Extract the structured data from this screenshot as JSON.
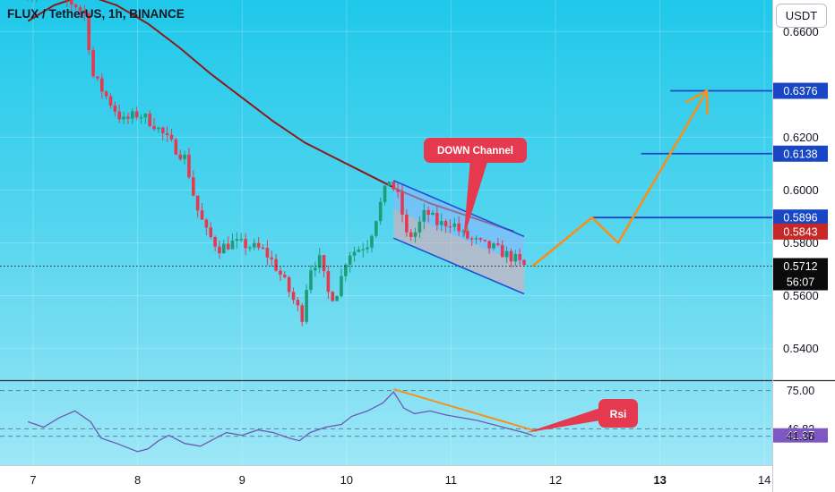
{
  "header": {
    "symbol_line": "FLUX / TetherUS, 1h, BINANCE",
    "currency_button": "USDT"
  },
  "chart_data": [
    {
      "type": "candlestick",
      "title": "FLUX / TetherUS, 1h, BINANCE",
      "ylim": [
        0.528,
        0.672
      ],
      "y_ticks": [
        "0.6600",
        "0.6200",
        "0.6000",
        "0.5800",
        "0.5600",
        "0.5400"
      ],
      "x_ticks": [
        "7",
        "8",
        "9",
        "10",
        "11",
        "12",
        "13",
        "14"
      ],
      "price_points": [
        [
          6.95,
          0.675
        ],
        [
          7.25,
          0.674
        ],
        [
          7.45,
          0.67
        ],
        [
          7.55,
          0.666
        ],
        [
          7.6,
          0.644
        ],
        [
          7.75,
          0.635
        ],
        [
          7.9,
          0.626
        ],
        [
          8.05,
          0.629
        ],
        [
          8.2,
          0.625
        ],
        [
          8.35,
          0.618
        ],
        [
          8.5,
          0.612
        ],
        [
          8.6,
          0.594
        ],
        [
          8.7,
          0.584
        ],
        [
          8.82,
          0.578
        ],
        [
          8.95,
          0.58
        ],
        [
          9.1,
          0.579
        ],
        [
          9.25,
          0.577
        ],
        [
          9.35,
          0.572
        ],
        [
          9.45,
          0.565
        ],
        [
          9.55,
          0.557
        ],
        [
          9.62,
          0.552
        ],
        [
          9.68,
          0.57
        ],
        [
          9.78,
          0.574
        ],
        [
          9.88,
          0.559
        ],
        [
          9.96,
          0.562
        ],
        [
          10.05,
          0.576
        ],
        [
          10.12,
          0.577
        ],
        [
          10.25,
          0.58
        ],
        [
          10.35,
          0.593
        ],
        [
          10.45,
          0.604
        ],
        [
          10.55,
          0.596
        ],
        [
          10.62,
          0.582
        ],
        [
          10.7,
          0.584
        ],
        [
          10.8,
          0.592
        ],
        [
          10.92,
          0.587
        ],
        [
          11.05,
          0.588
        ],
        [
          11.15,
          0.583
        ],
        [
          11.25,
          0.581
        ],
        [
          11.35,
          0.579
        ],
        [
          11.45,
          0.578
        ],
        [
          11.55,
          0.576
        ],
        [
          11.65,
          0.574
        ],
        [
          11.73,
          0.5712
        ]
      ],
      "ma_line": [
        [
          6.95,
          0.664
        ],
        [
          7.2,
          0.67
        ],
        [
          7.5,
          0.674
        ],
        [
          7.8,
          0.67
        ],
        [
          8.1,
          0.663
        ],
        [
          8.4,
          0.654
        ],
        [
          8.7,
          0.644
        ],
        [
          9.0,
          0.635
        ],
        [
          9.3,
          0.626
        ],
        [
          9.6,
          0.618
        ],
        [
          9.9,
          0.612
        ],
        [
          10.2,
          0.606
        ],
        [
          10.5,
          0.6
        ],
        [
          10.8,
          0.595
        ],
        [
          11.1,
          0.591
        ],
        [
          11.4,
          0.587
        ],
        [
          11.6,
          0.5843
        ]
      ],
      "channel": {
        "label": "DOWN Channel",
        "upper": [
          [
            10.45,
            0.6036
          ],
          [
            11.7,
            0.5824
          ]
        ],
        "lower": [
          [
            10.45,
            0.5818
          ],
          [
            11.7,
            0.5607
          ]
        ]
      },
      "projection_path": [
        [
          11.78,
          0.5712
        ],
        [
          12.35,
          0.5896
        ],
        [
          12.6,
          0.58
        ],
        [
          13.45,
          0.6376
        ]
      ],
      "horizontal_levels": [
        {
          "value": 0.6376,
          "label": "0.6376",
          "x_start": 13.1
        },
        {
          "value": 0.6138,
          "label": "0.6138",
          "x_start": 12.82
        },
        {
          "value": 0.5896,
          "label": "0.5896",
          "x_start": 12.35
        }
      ],
      "price_tags": [
        {
          "value": 0.5843,
          "label": "0.5843",
          "color": "#c62828"
        },
        {
          "value": 0.5712,
          "label": "0.5712",
          "countdown": "56:07",
          "color": "#0b0b0b"
        }
      ]
    },
    {
      "type": "line",
      "title": "Rsi",
      "ylim": [
        20,
        82
      ],
      "levels": [
        75.0,
        46.82,
        41.38
      ],
      "value_tags": [
        {
          "value": 75.0,
          "label": "75.00"
        },
        {
          "value": 46.82,
          "label": "46.82"
        },
        {
          "value": 41.97,
          "label": "41.97",
          "color": "#7e57c2"
        },
        {
          "value": 41.38,
          "label": "41.38"
        }
      ],
      "divergence_line": [
        [
          10.45,
          76.0
        ],
        [
          11.82,
          45.0
        ]
      ],
      "points": [
        [
          6.95,
          52
        ],
        [
          7.1,
          48
        ],
        [
          7.25,
          55
        ],
        [
          7.4,
          60
        ],
        [
          7.55,
          52
        ],
        [
          7.65,
          40
        ],
        [
          7.8,
          36
        ],
        [
          7.9,
          33
        ],
        [
          8.0,
          30
        ],
        [
          8.1,
          32
        ],
        [
          8.2,
          38
        ],
        [
          8.3,
          42
        ],
        [
          8.45,
          36
        ],
        [
          8.6,
          34
        ],
        [
          8.75,
          40
        ],
        [
          8.85,
          44
        ],
        [
          9.0,
          42
        ],
        [
          9.15,
          46
        ],
        [
          9.3,
          44
        ],
        [
          9.45,
          40
        ],
        [
          9.55,
          38
        ],
        [
          9.65,
          44
        ],
        [
          9.8,
          48
        ],
        [
          9.95,
          50
        ],
        [
          10.05,
          56
        ],
        [
          10.2,
          60
        ],
        [
          10.35,
          66
        ],
        [
          10.45,
          74
        ],
        [
          10.55,
          62
        ],
        [
          10.65,
          58
        ],
        [
          10.8,
          60
        ],
        [
          10.95,
          57
        ],
        [
          11.1,
          55
        ],
        [
          11.25,
          53
        ],
        [
          11.4,
          50
        ],
        [
          11.55,
          47
        ],
        [
          11.7,
          44
        ],
        [
          11.78,
          42
        ]
      ]
    }
  ],
  "annotations": {
    "down_channel_label": "DOWN Channel",
    "rsi_label": "Rsi"
  },
  "colors": {
    "up_candle": "#1b9e77",
    "down_candle": "#e53950",
    "ma": "#8b1a1a",
    "channel_line": "#1e50d8",
    "channel_fill": "#90b4ff",
    "projection": "#f5901e",
    "level_line": "#1846c4",
    "rsi_line": "#6e59b5",
    "divergence": "#f5901e",
    "callout": "#e53950"
  }
}
